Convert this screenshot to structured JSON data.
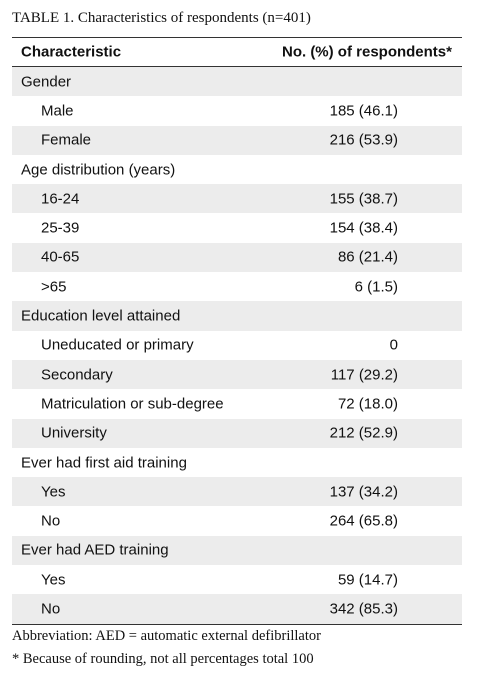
{
  "title": "TABLE 1. Characteristics of respondents (n=401)",
  "header": [
    "Characteristic",
    "No. (%) of respondents*"
  ],
  "sections": [
    {
      "label": "Gender",
      "rows": [
        [
          "Male",
          "185 (46.1)"
        ],
        [
          "Female",
          "216 (53.9)"
        ]
      ]
    },
    {
      "label": "Age distribution (years)",
      "rows": [
        [
          "16-24",
          "155 (38.7)"
        ],
        [
          "25-39",
          "154 (38.4)"
        ],
        [
          "40-65",
          "86 (21.4)"
        ],
        [
          ">65",
          "6 (1.5)"
        ]
      ]
    },
    {
      "label": "Education level attained",
      "rows": [
        [
          "Uneducated or primary",
          "0"
        ],
        [
          "Secondary",
          "117 (29.2)"
        ],
        [
          "Matriculation or sub-degree",
          "72 (18.0)"
        ],
        [
          "University",
          "212 (52.9)"
        ]
      ]
    },
    {
      "label": "Ever had first aid training",
      "rows": [
        [
          "Yes",
          "137 (34.2)"
        ],
        [
          "No",
          "264 (65.8)"
        ]
      ]
    },
    {
      "label": "Ever had AED training",
      "rows": [
        [
          "Yes",
          "59 (14.7)"
        ],
        [
          "No",
          "342 (85.3)"
        ]
      ]
    }
  ],
  "footnotes": [
    "Abbreviation: AED = automatic external defibrillator",
    "*   Because of rounding, not all percentages total 100"
  ]
}
